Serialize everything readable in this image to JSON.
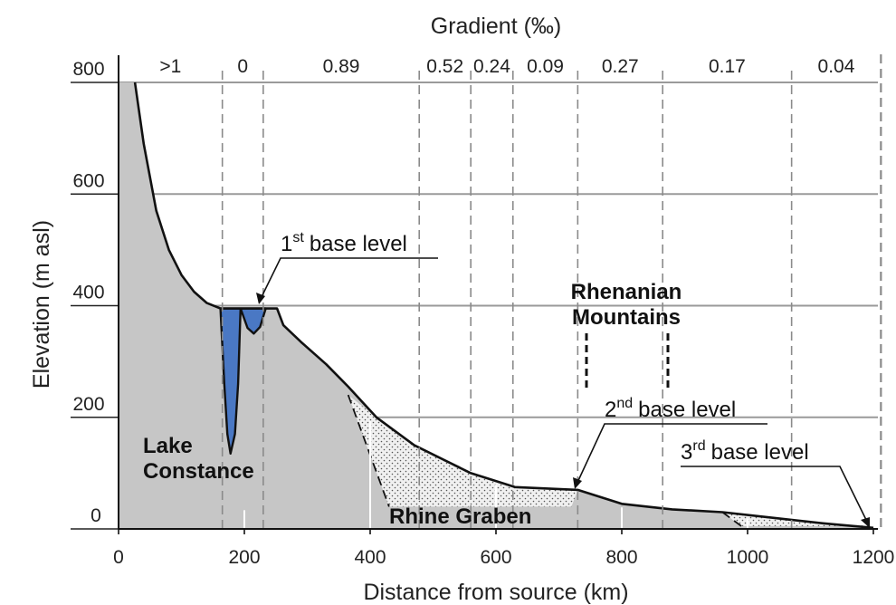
{
  "chart_data": {
    "type": "area",
    "title": "",
    "xlabel": "Distance from source (km)",
    "ylabel": "Elevation (m asl)",
    "top_axis_label": "Gradient (‰)",
    "xlim": [
      0,
      1220
    ],
    "ylim": [
      0,
      800
    ],
    "x_ticks": [
      0,
      200,
      400,
      600,
      800,
      1000,
      1200
    ],
    "y_ticks": [
      0,
      200,
      400,
      600,
      800
    ],
    "grid": "horizontal",
    "profile": {
      "x": [
        26,
        40,
        60,
        80,
        100,
        120,
        140,
        162,
        252,
        262,
        290,
        330,
        365,
        410,
        470,
        560,
        630,
        730,
        800,
        880,
        960,
        1040,
        1120,
        1200
      ],
      "y": [
        800,
        690,
        570,
        500,
        455,
        425,
        405,
        395,
        395,
        365,
        335,
        295,
        255,
        200,
        150,
        100,
        75,
        70,
        45,
        35,
        30,
        20,
        10,
        2
      ]
    },
    "lake": {
      "x": [
        162,
        168,
        173,
        178,
        185,
        190,
        194,
        205,
        215,
        225,
        234
      ],
      "y": [
        395,
        260,
        170,
        135,
        170,
        260,
        395,
        360,
        350,
        362,
        395
      ]
    },
    "gradient_segments": [
      {
        "from": 0,
        "to": 165,
        "label": ">1"
      },
      {
        "from": 165,
        "to": 230,
        "label": "0"
      },
      {
        "from": 230,
        "to": 478,
        "label": "0.89"
      },
      {
        "from": 478,
        "to": 560,
        "label": "0.52"
      },
      {
        "from": 560,
        "to": 627,
        "label": "0.24"
      },
      {
        "from": 627,
        "to": 730,
        "label": "0.09"
      },
      {
        "from": 730,
        "to": 865,
        "label": "0.27"
      },
      {
        "from": 865,
        "to": 1070,
        "label": "0.17"
      },
      {
        "from": 1070,
        "to": 1212,
        "label": "0.04"
      }
    ],
    "graben_fills": [
      {
        "x": [
          365,
          430,
          720,
          730,
          630,
          560,
          470,
          410
        ],
        "y": [
          240,
          40,
          40,
          70,
          75,
          100,
          150,
          200
        ]
      },
      {
        "x": [
          960,
          990,
          1200,
          1120,
          1040
        ],
        "y": [
          30,
          5,
          5,
          10,
          20
        ]
      }
    ],
    "annotations": {
      "lake": [
        "Lake",
        "Constance"
      ],
      "graben": "Rhine Graben",
      "mountains": [
        "Rhenanian",
        "Mountains"
      ],
      "base1": {
        "text": "base level",
        "ordinal": "1",
        "sup": "st"
      },
      "base2": {
        "text": "base level",
        "ordinal": "2",
        "sup": "nd"
      },
      "base3": {
        "text": "base level",
        "ordinal": "3",
        "sup": "rd"
      }
    }
  },
  "colors": {
    "profile_fill": "#c6c6c6",
    "lake_fill": "#4a78c4",
    "line": "#111111",
    "grid": "#9a9a9a",
    "dash": "#8a8a8a"
  }
}
